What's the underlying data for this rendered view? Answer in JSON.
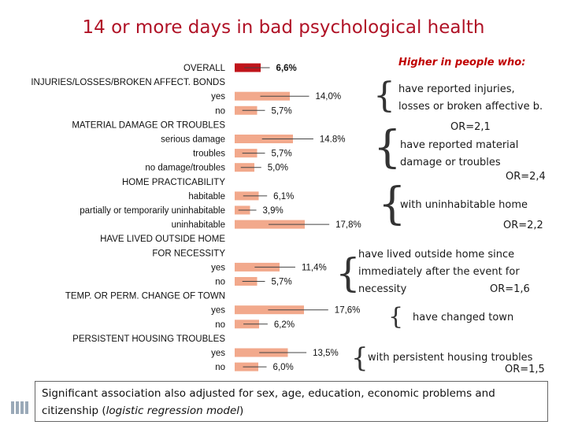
{
  "title": "14 or more days in bad psychological health",
  "chart_data": {
    "type": "bar",
    "orientation": "horizontal",
    "title": "14 or more days in bad psychological health",
    "xlim": [
      0,
      18
    ],
    "rows": [
      {
        "label": "OVERALL",
        "kind": "bar",
        "value": 6.6,
        "value_label": "6,6%",
        "color": "#c0151b"
      },
      {
        "label": "INJURIES/LOSSES/BROKEN AFFECT. BONDS",
        "kind": "header"
      },
      {
        "label": "yes",
        "kind": "bar",
        "value": 14.0,
        "value_label": "14,0%",
        "color": "#f2a98c"
      },
      {
        "label": "no",
        "kind": "bar",
        "value": 5.7,
        "value_label": "5,7%",
        "color": "#f2a98c"
      },
      {
        "label": "MATERIAL DAMAGE OR TROUBLES",
        "kind": "header"
      },
      {
        "label": "serious damage",
        "kind": "bar",
        "value": 14.8,
        "value_label": "14.8%",
        "color": "#f2a98c"
      },
      {
        "label": "troubles",
        "kind": "bar",
        "value": 5.7,
        "value_label": "5,7%",
        "color": "#f2a98c"
      },
      {
        "label": "no damage/troubles",
        "kind": "bar",
        "value": 5.0,
        "value_label": "5,0%",
        "color": "#f2a98c"
      },
      {
        "label": "HOME PRACTICABILITY",
        "kind": "header"
      },
      {
        "label": "habitable",
        "kind": "bar",
        "value": 6.1,
        "value_label": "6,1%",
        "color": "#f2a98c"
      },
      {
        "label": "partially or temporarily uninhabitable",
        "kind": "bar",
        "value": 3.9,
        "value_label": "3,9%",
        "color": "#f2a98c"
      },
      {
        "label": "uninhabitable",
        "kind": "bar",
        "value": 17.8,
        "value_label": "17,8%",
        "color": "#f2a98c"
      },
      {
        "label": "HAVE LIVED OUTSIDE HOME",
        "kind": "header"
      },
      {
        "label": "FOR NECESSITY",
        "kind": "header"
      },
      {
        "label": "yes",
        "kind": "bar",
        "value": 11.4,
        "value_label": "11,4%",
        "color": "#f2a98c"
      },
      {
        "label": "no",
        "kind": "bar",
        "value": 5.7,
        "value_label": "5,7%",
        "color": "#f2a98c"
      },
      {
        "label": "TEMP. OR PERM. CHANGE OF TOWN",
        "kind": "header"
      },
      {
        "label": "yes",
        "kind": "bar",
        "value": 17.6,
        "value_label": "17,6%",
        "color": "#f2a98c"
      },
      {
        "label": "no",
        "kind": "bar",
        "value": 6.2,
        "value_label": "6,2%",
        "color": "#f2a98c"
      },
      {
        "label": "PERSISTENT HOUSING TROUBLES",
        "kind": "header"
      },
      {
        "label": "yes",
        "kind": "bar",
        "value": 13.5,
        "value_label": "13,5%",
        "color": "#f2a98c"
      },
      {
        "label": "no",
        "kind": "bar",
        "value": 6.0,
        "value_label": "6,0%",
        "color": "#f2a98c"
      }
    ]
  },
  "annotations": {
    "heading": "Higher in people who:",
    "items": [
      {
        "text": "have reported injuries,\nlosses or broken affective b.",
        "or": "OR=2,1"
      },
      {
        "text": "have reported  material\ndamage or troubles",
        "or": "OR=2,4"
      },
      {
        "text": "with uninhabitable home",
        "or": "OR=2,2"
      },
      {
        "text": "have lived outside home since\nimmediately after the event for\nnecessity",
        "or": "OR=1,6"
      },
      {
        "text": "have changed town",
        "or": ""
      },
      {
        "text": "with persistent housing troubles",
        "or": "OR=1,5"
      }
    ]
  },
  "note": {
    "text_before": "Significant association also adjusted for sex, age, education, economic problems and citizenship (",
    "text_italic": "logistic regression model",
    "text_after": ")"
  }
}
